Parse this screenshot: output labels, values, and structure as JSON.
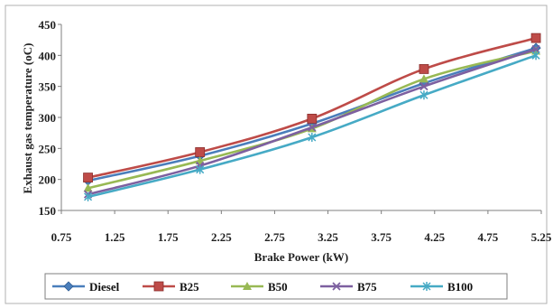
{
  "chart_data": {
    "type": "line",
    "title": "",
    "xlabel": "Brake Power (kW)",
    "ylabel": "Exhaust gas temperature (oC)",
    "xlim": [
      0.75,
      5.25
    ],
    "ylim": [
      150,
      450
    ],
    "xticks": [
      "0.75",
      "1.25",
      "1.75",
      "2.25",
      "2.75",
      "3.25",
      "3.75",
      "4.25",
      "4.75",
      "5.25"
    ],
    "yticks": [
      "150",
      "200",
      "250",
      "300",
      "350",
      "400",
      "450"
    ],
    "grid": "none",
    "legend_position": "bottom",
    "series": [
      {
        "name": "Diesel",
        "color": "#4a7ebb",
        "marker": "diamond",
        "x": [
          1.0,
          2.05,
          3.1,
          4.15,
          5.2
        ],
        "y": [
          198,
          238,
          290,
          355,
          412
        ]
      },
      {
        "name": "B25",
        "color": "#be4b48",
        "marker": "square",
        "x": [
          1.0,
          2.05,
          3.1,
          4.15,
          5.2
        ],
        "y": [
          203,
          244,
          298,
          378,
          428
        ]
      },
      {
        "name": "B50",
        "color": "#98b954",
        "marker": "triangle",
        "x": [
          1.0,
          2.05,
          3.1,
          4.15,
          5.2
        ],
        "y": [
          186,
          230,
          282,
          362,
          407
        ]
      },
      {
        "name": "B75",
        "color": "#7d60a0",
        "marker": "x",
        "x": [
          1.0,
          2.05,
          3.1,
          4.15,
          5.2
        ],
        "y": [
          176,
          222,
          284,
          350,
          410
        ]
      },
      {
        "name": "B100",
        "color": "#46aac5",
        "marker": "asterisk",
        "x": [
          1.0,
          2.05,
          3.1,
          4.15,
          5.2
        ],
        "y": [
          172,
          216,
          268,
          336,
          400
        ]
      }
    ]
  }
}
